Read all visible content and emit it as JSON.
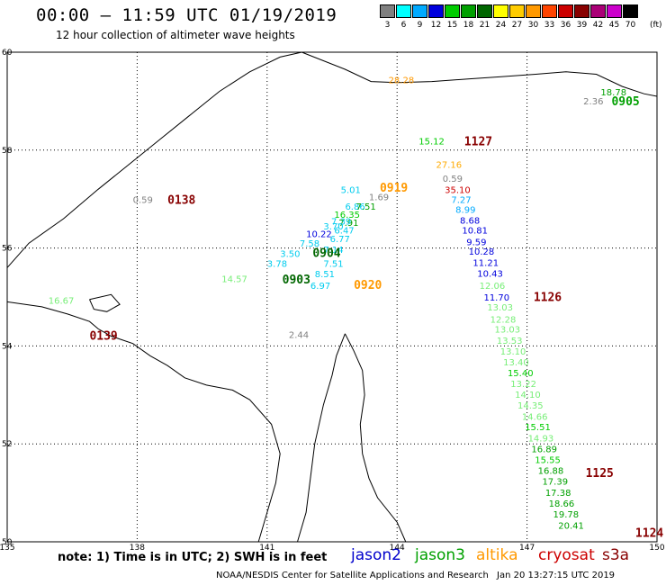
{
  "header": {
    "title": "00:00 – 11:59 UTC 01/19/2019",
    "subtitle": "12 hour collection of altimeter wave heights"
  },
  "scale": {
    "unit": "(ft)",
    "boxes": [
      {
        "label": "3",
        "color": "#808080"
      },
      {
        "label": "6",
        "color": "#00ffff"
      },
      {
        "label": "9",
        "color": "#00aaff"
      },
      {
        "label": "12",
        "color": "#0000dd"
      },
      {
        "label": "15",
        "color": "#00cc00"
      },
      {
        "label": "18",
        "color": "#00a000"
      },
      {
        "label": "21",
        "color": "#006600"
      },
      {
        "label": "24",
        "color": "#ffff00"
      },
      {
        "label": "27",
        "color": "#ffcc00"
      },
      {
        "label": "30",
        "color": "#ff9900"
      },
      {
        "label": "33",
        "color": "#ff4400"
      },
      {
        "label": "36",
        "color": "#cc0000"
      },
      {
        "label": "39",
        "color": "#880000"
      },
      {
        "label": "42",
        "color": "#aa0077"
      },
      {
        "label": "45",
        "color": "#cc00cc"
      },
      {
        "label": "70",
        "color": "#000000"
      }
    ]
  },
  "axes": {
    "x_ticks": [
      "135",
      "138",
      "141",
      "144",
      "147",
      "150"
    ],
    "y_ticks": [
      "60",
      "58",
      "56",
      "54",
      "52",
      "50"
    ]
  },
  "observations": [
    {
      "text": "28.28",
      "lon": 143.8,
      "lat": 59.37,
      "color": "#ff9900"
    },
    {
      "text": "18.78",
      "lon": 148.7,
      "lat": 59.12,
      "color": "#00a000"
    },
    {
      "text": "2.36",
      "lon": 148.3,
      "lat": 58.93,
      "color": "#808080"
    },
    {
      "text": "15.12",
      "lon": 144.5,
      "lat": 58.12,
      "color": "#00cc00"
    },
    {
      "text": "27.16",
      "lon": 144.9,
      "lat": 57.64,
      "color": "#ffaa00"
    },
    {
      "text": "0.59",
      "lon": 145.05,
      "lat": 57.35,
      "color": "#808080"
    },
    {
      "text": "35.10",
      "lon": 145.1,
      "lat": 57.12,
      "color": "#cc0000"
    },
    {
      "text": "7.27",
      "lon": 145.25,
      "lat": 56.92,
      "color": "#00aaff"
    },
    {
      "text": "8.99",
      "lon": 145.35,
      "lat": 56.72,
      "color": "#00aaff"
    },
    {
      "text": "8.68",
      "lon": 145.45,
      "lat": 56.5,
      "color": "#0000dd"
    },
    {
      "text": "10.81",
      "lon": 145.5,
      "lat": 56.3,
      "color": "#0000dd"
    },
    {
      "text": "9.59",
      "lon": 145.6,
      "lat": 56.06,
      "color": "#0000dd"
    },
    {
      "text": "10.28",
      "lon": 145.65,
      "lat": 55.86,
      "color": "#0000dd"
    },
    {
      "text": "11.21",
      "lon": 145.75,
      "lat": 55.63,
      "color": "#0000dd"
    },
    {
      "text": "10.43",
      "lon": 145.85,
      "lat": 55.41,
      "color": "#0000dd"
    },
    {
      "text": "12.06",
      "lon": 145.9,
      "lat": 55.17,
      "color": "#77ee77"
    },
    {
      "text": "11.70",
      "lon": 146.0,
      "lat": 54.93,
      "color": "#0000dd"
    },
    {
      "text": "13.03",
      "lon": 146.08,
      "lat": 54.72,
      "color": "#77ee77"
    },
    {
      "text": "12.28",
      "lon": 146.15,
      "lat": 54.48,
      "color": "#77ee77"
    },
    {
      "text": "13.03",
      "lon": 146.25,
      "lat": 54.27,
      "color": "#77ee77"
    },
    {
      "text": "13.53",
      "lon": 146.3,
      "lat": 54.04,
      "color": "#77ee77"
    },
    {
      "text": "13.10",
      "lon": 146.38,
      "lat": 53.82,
      "color": "#77ee77"
    },
    {
      "text": "13.40",
      "lon": 146.45,
      "lat": 53.6,
      "color": "#77ee77"
    },
    {
      "text": "15.40",
      "lon": 146.55,
      "lat": 53.38,
      "color": "#00cc00"
    },
    {
      "text": "13.22",
      "lon": 146.62,
      "lat": 53.16,
      "color": "#77ee77"
    },
    {
      "text": "14.10",
      "lon": 146.72,
      "lat": 52.94,
      "color": "#77ee77"
    },
    {
      "text": "14.35",
      "lon": 146.78,
      "lat": 52.72,
      "color": "#77ee77"
    },
    {
      "text": "14.66",
      "lon": 146.88,
      "lat": 52.49,
      "color": "#77ee77"
    },
    {
      "text": "15.51",
      "lon": 146.95,
      "lat": 52.28,
      "color": "#00cc00"
    },
    {
      "text": "14.93",
      "lon": 147.02,
      "lat": 52.05,
      "color": "#77ee77"
    },
    {
      "text": "16.89",
      "lon": 147.1,
      "lat": 51.83,
      "color": "#00a000"
    },
    {
      "text": "15.55",
      "lon": 147.18,
      "lat": 51.61,
      "color": "#00cc00"
    },
    {
      "text": "16.88",
      "lon": 147.25,
      "lat": 51.39,
      "color": "#00a000"
    },
    {
      "text": "17.39",
      "lon": 147.35,
      "lat": 51.17,
      "color": "#00a000"
    },
    {
      "text": "17.38",
      "lon": 147.42,
      "lat": 50.94,
      "color": "#00a000"
    },
    {
      "text": "18.66",
      "lon": 147.5,
      "lat": 50.72,
      "color": "#00a000"
    },
    {
      "text": "19.78",
      "lon": 147.6,
      "lat": 50.5,
      "color": "#00a000"
    },
    {
      "text": "20.41",
      "lon": 147.72,
      "lat": 50.27,
      "color": "#00a000"
    },
    {
      "text": "5.01",
      "lon": 142.7,
      "lat": 57.12,
      "color": "#00ccee"
    },
    {
      "text": "1.69",
      "lon": 143.35,
      "lat": 56.98,
      "color": "#808080"
    },
    {
      "text": "6.86",
      "lon": 142.8,
      "lat": 56.78,
      "color": "#00ccee"
    },
    {
      "text": "7.51",
      "lon": 143.05,
      "lat": 56.78,
      "color": "#00a000"
    },
    {
      "text": "16.35",
      "lon": 142.55,
      "lat": 56.62,
      "color": "#00cc00"
    },
    {
      "text": "7.91",
      "lon": 142.65,
      "lat": 56.45,
      "color": "#00a000"
    },
    {
      "text": "7.39",
      "lon": 142.48,
      "lat": 56.48,
      "color": "#00ccee"
    },
    {
      "text": "3.70",
      "lon": 142.3,
      "lat": 56.38,
      "color": "#00ccee"
    },
    {
      "text": "6.47",
      "lon": 142.55,
      "lat": 56.3,
      "color": "#00ccee"
    },
    {
      "text": "10.22",
      "lon": 141.9,
      "lat": 56.22,
      "color": "#0000dd"
    },
    {
      "text": "6.77",
      "lon": 142.45,
      "lat": 56.12,
      "color": "#00ccee"
    },
    {
      "text": "7.58",
      "lon": 141.75,
      "lat": 56.03,
      "color": "#00ccee"
    },
    {
      "text": "7.14",
      "lon": 142.3,
      "lat": 55.9,
      "color": "#00ccee"
    },
    {
      "text": "3.50",
      "lon": 141.3,
      "lat": 55.82,
      "color": "#00ccee"
    },
    {
      "text": "3.78",
      "lon": 141.0,
      "lat": 55.62,
      "color": "#00ccee"
    },
    {
      "text": "7.51",
      "lon": 142.3,
      "lat": 55.62,
      "color": "#00ccee"
    },
    {
      "text": "8.51",
      "lon": 142.1,
      "lat": 55.4,
      "color": "#00ccee"
    },
    {
      "text": "14.57",
      "lon": 139.95,
      "lat": 55.3,
      "color": "#77ee77"
    },
    {
      "text": "6.97",
      "lon": 142.0,
      "lat": 55.17,
      "color": "#00ccee"
    },
    {
      "text": "16.67",
      "lon": 135.95,
      "lat": 54.86,
      "color": "#77ee77"
    },
    {
      "text": "0.59",
      "lon": 137.9,
      "lat": 56.92,
      "color": "#808080"
    },
    {
      "text": "2.44",
      "lon": 141.5,
      "lat": 54.16,
      "color": "#808080"
    }
  ],
  "pass_times": [
    {
      "text": "0905",
      "lon": 148.95,
      "lat": 58.92,
      "color": "#00a000"
    },
    {
      "text": "1127",
      "lon": 145.55,
      "lat": 58.1,
      "color": "#880000"
    },
    {
      "text": "0919",
      "lon": 143.6,
      "lat": 57.15,
      "color": "#ff9900"
    },
    {
      "text": "0138",
      "lon": 138.7,
      "lat": 56.9,
      "color": "#880000"
    },
    {
      "text": "0904",
      "lon": 142.05,
      "lat": 55.82,
      "color": "#006600"
    },
    {
      "text": "0903",
      "lon": 141.35,
      "lat": 55.28,
      "color": "#006600"
    },
    {
      "text": "0920",
      "lon": 143.0,
      "lat": 55.17,
      "color": "#ff9900"
    },
    {
      "text": "1126",
      "lon": 147.15,
      "lat": 54.92,
      "color": "#880000"
    },
    {
      "text": "0139",
      "lon": 136.9,
      "lat": 54.13,
      "color": "#880000"
    },
    {
      "text": "1125",
      "lon": 148.35,
      "lat": 51.32,
      "color": "#880000"
    },
    {
      "text": "1124",
      "lon": 149.5,
      "lat": 50.1,
      "color": "#880000"
    }
  ],
  "footer": {
    "note": "note:  1) Time is in UTC;  2) SWH is in feet",
    "satellites": [
      {
        "name": "jason2",
        "color": "#0000cc"
      },
      {
        "name": "jason3",
        "color": "#00a000"
      },
      {
        "name": "altika",
        "color": "#ff9900"
      },
      {
        "name": "cryosat",
        "color": "#cc0000"
      },
      {
        "name": "s3a",
        "color": "#880000"
      }
    ],
    "credit": "NOAA/NESDIS Center for Satellite Applications and Research",
    "timestamp": "Jan 20 13:27:15 UTC 2019"
  }
}
